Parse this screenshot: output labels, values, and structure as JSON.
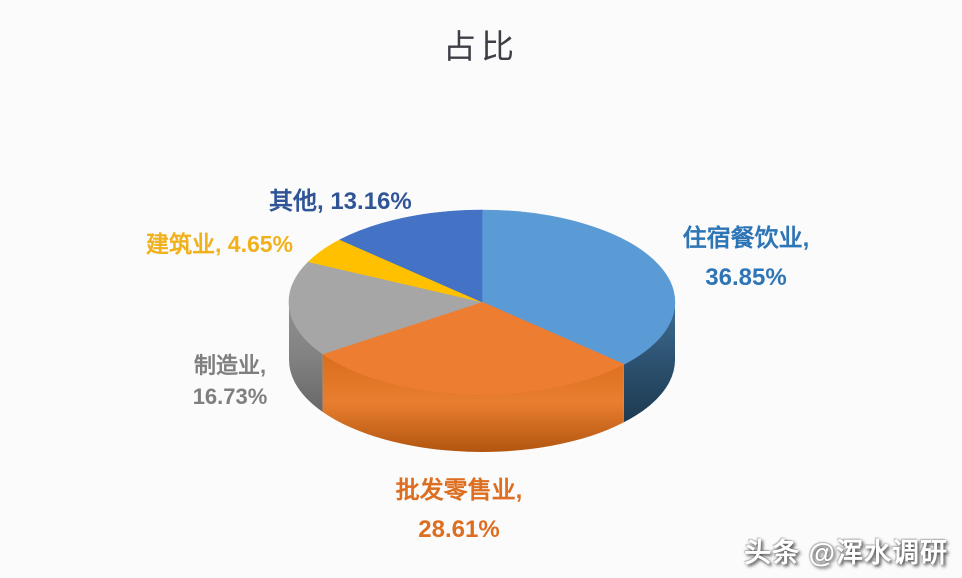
{
  "chart_data": {
    "type": "pie",
    "style": "3d",
    "title": "占比",
    "start_angle_deg": 0,
    "direction": "clockwise",
    "legend": "none",
    "units": "%",
    "slices": [
      {
        "label": "住宿餐饮业",
        "value": 36.85,
        "callout_line1": "住宿餐饮业,",
        "callout_line2": "36.85%",
        "color": "#5B9BD5",
        "label_color": "#2E75B6",
        "side_gradient": [
          "#406E92",
          "#2C5170",
          "#1E3A50"
        ]
      },
      {
        "label": "批发零售业",
        "value": 28.61,
        "callout_line1": "批发零售业,",
        "callout_line2": "28.61%",
        "color": "#ED7D31",
        "label_color": "#DD6E20",
        "side_gradient": [
          "#D96E1C",
          "#E87E2F",
          "#B2550F"
        ]
      },
      {
        "label": "制造业",
        "value": 16.73,
        "callout_line1": "制造业,",
        "callout_line2": "16.73%",
        "color": "#A6A6A6",
        "label_color": "#7F7F7F",
        "side_gradient": [
          "#909090",
          "#828282",
          "#676767"
        ]
      },
      {
        "label": "建筑业",
        "value": 4.65,
        "callout": "建筑业, 4.65%",
        "color": "#FFC000",
        "label_color": "#F0B11C"
      },
      {
        "label": "其他",
        "value": 13.16,
        "callout": "其他, 13.16%",
        "color": "#4472C4",
        "label_color": "#2F5597"
      }
    ]
  },
  "watermark": {
    "text": "头条 @浑水调研"
  }
}
